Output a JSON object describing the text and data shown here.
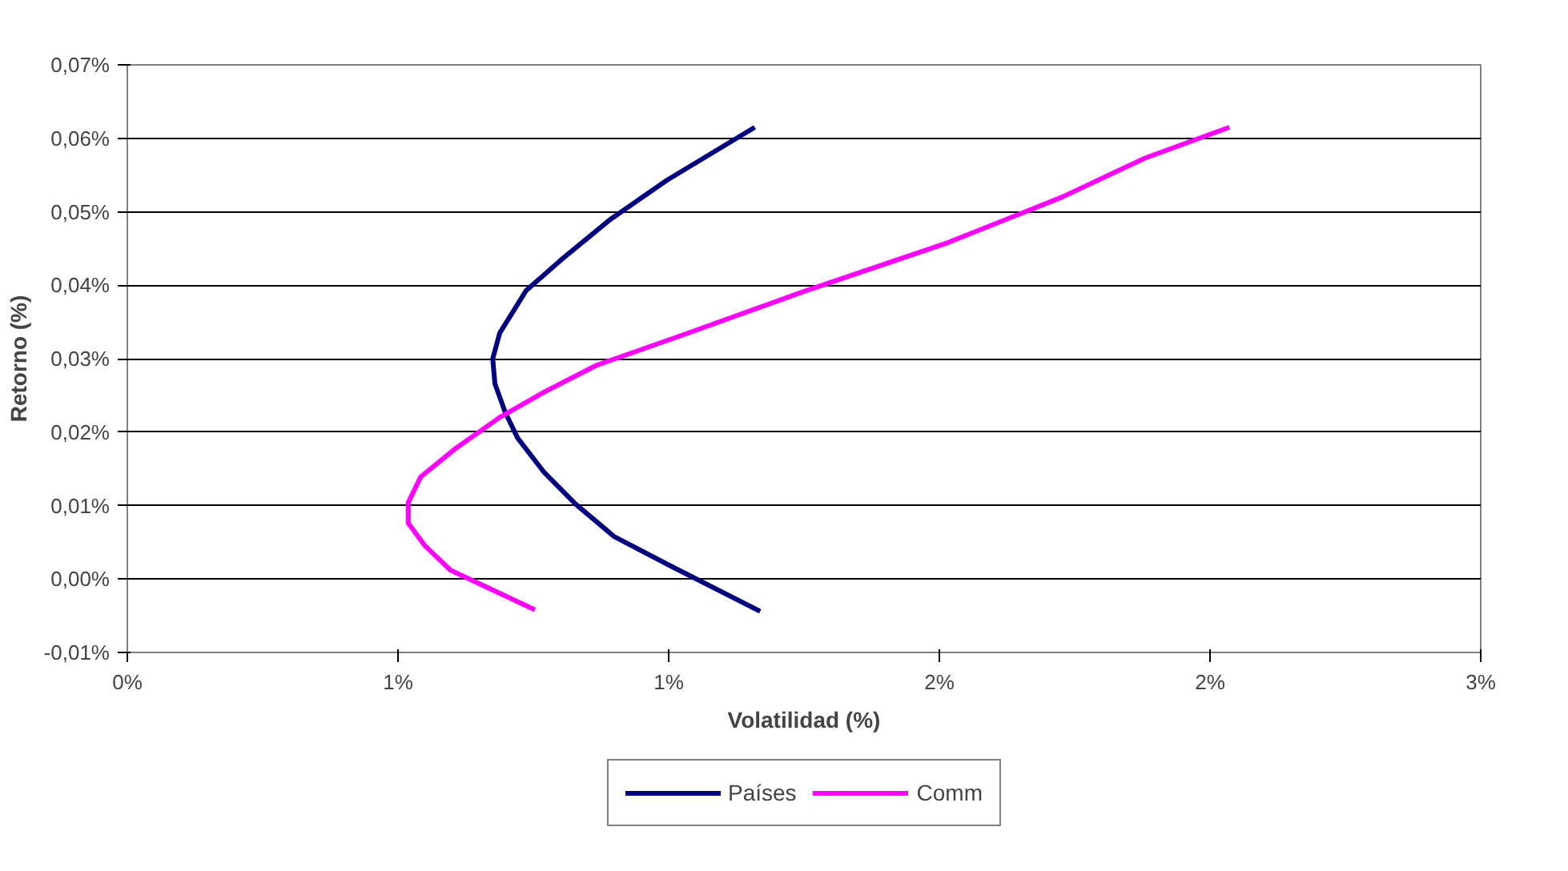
{
  "chart_data": {
    "type": "line",
    "xlabel": "Volatilidad (%)",
    "ylabel": "Retorno (%)",
    "series": [
      {
        "name": "Países",
        "color": "#000080",
        "x": [
          1.159,
          0.997,
          0.893,
          0.802,
          0.737,
          0.688,
          0.675,
          0.679,
          0.698,
          0.721,
          0.769,
          0.828,
          0.899,
          1.003,
          1.169
        ],
        "values": [
          0.0615,
          0.0543,
          0.049,
          0.0435,
          0.0393,
          0.0335,
          0.03,
          0.0266,
          0.0227,
          0.0192,
          0.0146,
          0.0102,
          0.0058,
          0.0018,
          -0.0044
        ]
      },
      {
        "name": "Comm",
        "color": "#ff00ff",
        "x": [
          2.036,
          1.88,
          1.727,
          1.516,
          1.256,
          1.029,
          0.867,
          0.769,
          0.688,
          0.607,
          0.542,
          0.519,
          0.519,
          0.549,
          0.597,
          0.753
        ],
        "values": [
          0.0615,
          0.0573,
          0.052,
          0.0458,
          0.0393,
          0.0333,
          0.0291,
          0.0254,
          0.022,
          0.0178,
          0.0139,
          0.0104,
          0.0076,
          0.0046,
          0.0012,
          -0.0042
        ]
      }
    ],
    "xlim": [
      0,
      2.5
    ],
    "xticks": [
      {
        "value": 0,
        "label": "0%"
      },
      {
        "value": 0.5,
        "label": "1%"
      },
      {
        "value": 1.0,
        "label": "1%"
      },
      {
        "value": 1.5,
        "label": "2%"
      },
      {
        "value": 2.0,
        "label": "2%"
      },
      {
        "value": 2.5,
        "label": "3%"
      }
    ],
    "ylim": [
      -0.01,
      0.07
    ],
    "yticks": [
      {
        "value": -0.01,
        "label": "-0,01%"
      },
      {
        "value": 0.0,
        "label": "0,00%"
      },
      {
        "value": 0.01,
        "label": "0,01%"
      },
      {
        "value": 0.02,
        "label": "0,02%"
      },
      {
        "value": 0.03,
        "label": "0,03%"
      },
      {
        "value": 0.04,
        "label": "0,04%"
      },
      {
        "value": 0.05,
        "label": "0,05%"
      },
      {
        "value": 0.06,
        "label": "0,06%"
      },
      {
        "value": 0.07,
        "label": "0,07%"
      }
    ],
    "grid": "y",
    "legend": "bottom",
    "marker": "none",
    "line_style": "solid"
  }
}
